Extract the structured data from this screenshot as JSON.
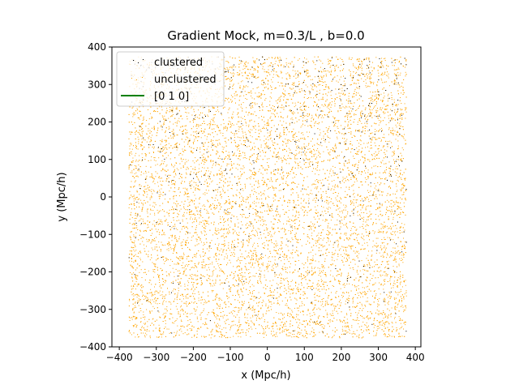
{
  "chart_data": {
    "type": "scatter",
    "title": "Gradient Mock, m=0.3/L , b=0.0",
    "xlabel": "x (Mpc/h)",
    "ylabel": "y (Mpc/h)",
    "xlim": [
      -420,
      415
    ],
    "ylim": [
      -400,
      400
    ],
    "xticks": [
      -400,
      -300,
      -200,
      -100,
      0,
      100,
      200,
      300,
      400
    ],
    "xtick_labels": [
      "−400",
      "−300",
      "−200",
      "−100",
      "0",
      "100",
      "200",
      "300",
      "400"
    ],
    "yticks": [
      -400,
      -300,
      -200,
      -100,
      0,
      100,
      200,
      300,
      400
    ],
    "ytick_labels": [
      "−400",
      "−300",
      "−200",
      "−100",
      "0",
      "100",
      "200",
      "300",
      "400"
    ],
    "grid": false,
    "legend_position": "top-left",
    "series": [
      {
        "name": "clustered",
        "kind": "scatter",
        "color": "#000000",
        "x_range": [
          -375,
          375
        ],
        "y_range": [
          -375,
          375
        ],
        "density_note": "sparse points, more frequent toward top"
      },
      {
        "name": "unclustered",
        "kind": "scatter",
        "color": "#ffa500",
        "x_range": [
          -375,
          375
        ],
        "y_range": [
          -375,
          375
        ],
        "density_note": "dense uniform points"
      },
      {
        "name": "[0 1 0]",
        "kind": "line",
        "color": "#008000"
      }
    ]
  }
}
